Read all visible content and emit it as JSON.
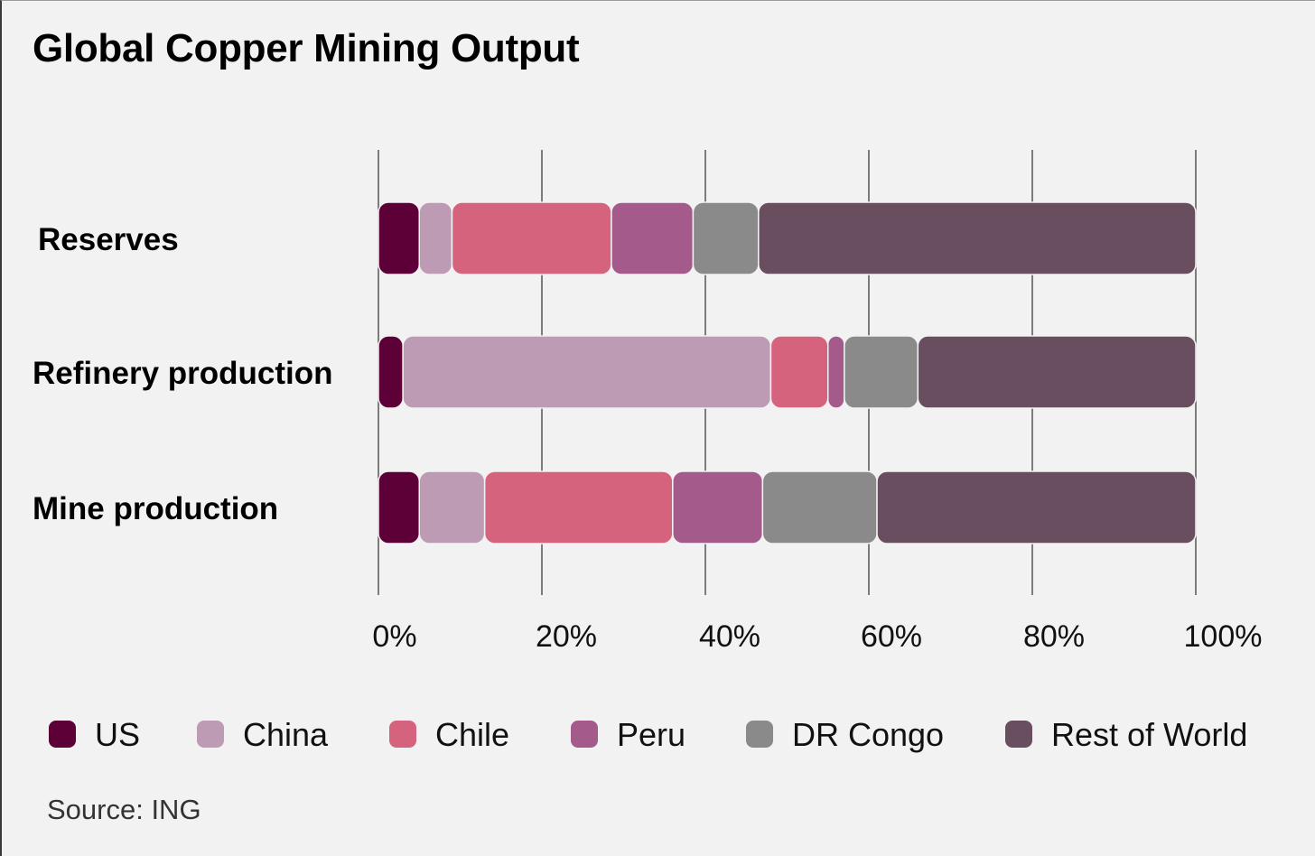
{
  "chart_data": {
    "type": "bar",
    "orientation": "horizontal",
    "stacked": true,
    "title": "Global Copper Mining Output",
    "source": "Source: ING",
    "categories": [
      "Reserves",
      "Refinery production",
      "Mine production"
    ],
    "xlim": [
      0,
      100
    ],
    "x_ticks": [
      {
        "value": 0,
        "label": "0%"
      },
      {
        "value": 20,
        "label": "20%"
      },
      {
        "value": 40,
        "label": "40%"
      },
      {
        "value": 60,
        "label": "60%"
      },
      {
        "value": 80,
        "label": "80%"
      },
      {
        "value": 100,
        "label": "100%"
      }
    ],
    "grid": "vertical",
    "legend_position": "bottom",
    "series": [
      {
        "name": "US",
        "color": "#5c0037",
        "values": [
          5,
          3,
          5
        ]
      },
      {
        "name": "China",
        "color": "#be9bb4",
        "values": [
          4,
          45,
          8
        ]
      },
      {
        "name": "Chile",
        "color": "#d5637d",
        "values": [
          19.5,
          7,
          23
        ]
      },
      {
        "name": "Peru",
        "color": "#a55a8c",
        "values": [
          10,
          2,
          11
        ]
      },
      {
        "name": "DR Congo",
        "color": "#8a8a8a",
        "values": [
          8,
          9,
          14
        ]
      },
      {
        "name": "Rest of World",
        "color": "#694e60",
        "values": [
          53.5,
          34,
          39
        ]
      }
    ]
  }
}
